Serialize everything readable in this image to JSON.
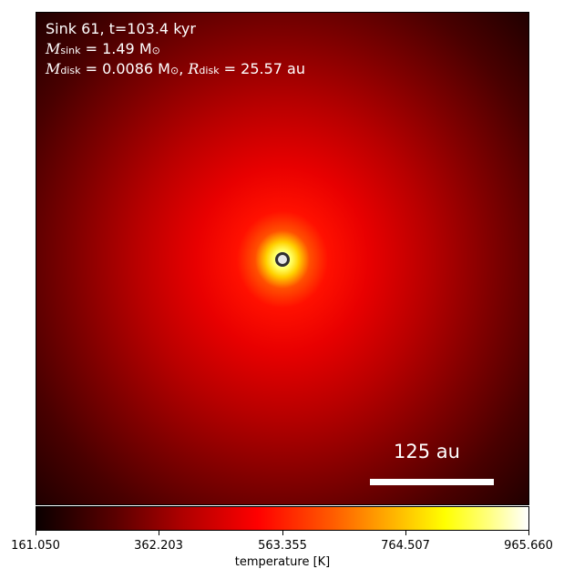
{
  "info": {
    "line1": "Sink 61, t=103.4 kyr",
    "msink_label": "M",
    "msink_sub": "sink",
    "msink_value": " = 1.49 M",
    "msink_unit_sub": "⊙",
    "mdisk_label": "M",
    "mdisk_sub": "disk",
    "mdisk_value": " = 0.0086 M",
    "mdisk_unit_sub": "⊙",
    "rdisk_sep": ", ",
    "rdisk_label": "R",
    "rdisk_sub": "disk",
    "rdisk_value": " = 25.57 au"
  },
  "scale_bar": {
    "label": "125 au"
  },
  "colorbar": {
    "label": "temperature [K]",
    "ticks": [
      "161.050",
      "362.203",
      "563.355",
      "764.507",
      "965.660"
    ],
    "colors": [
      "#0b0000",
      "#b00000",
      "#ff0000",
      "#ffff00",
      "#ffffff"
    ]
  }
}
